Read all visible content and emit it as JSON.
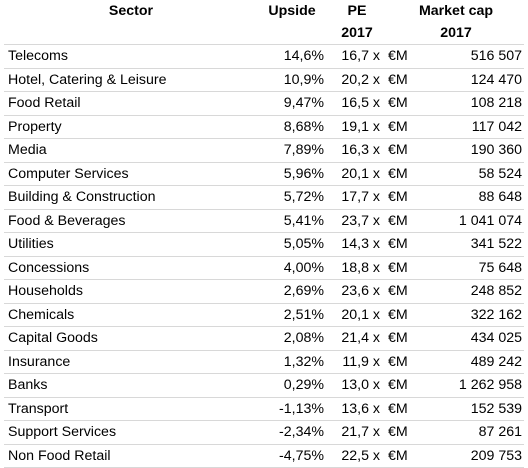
{
  "headers": {
    "sector": "Sector",
    "upside": "Upside",
    "pe_line1": "PE",
    "pe_line2": "2017",
    "mcap_line1": "Market cap",
    "mcap_line2": "2017"
  },
  "rows": [
    {
      "sector": "Telecoms",
      "upside": "14,6%",
      "pe": "16,7 x",
      "cur": "€M",
      "mcap": "516 507"
    },
    {
      "sector": "Hotel, Catering & Leisure",
      "upside": "10,9%",
      "pe": "20,2 x",
      "cur": "€M",
      "mcap": "124 470"
    },
    {
      "sector": "Food Retail",
      "upside": "9,47%",
      "pe": "16,5 x",
      "cur": "€M",
      "mcap": "108 218"
    },
    {
      "sector": "Property",
      "upside": "8,68%",
      "pe": "19,1 x",
      "cur": "€M",
      "mcap": "117 042"
    },
    {
      "sector": "Media",
      "upside": "7,89%",
      "pe": "16,3 x",
      "cur": "€M",
      "mcap": "190 360"
    },
    {
      "sector": "Computer Services",
      "upside": "5,96%",
      "pe": "20,1 x",
      "cur": "€M",
      "mcap": "58 524"
    },
    {
      "sector": "Building & Construction",
      "upside": "5,72%",
      "pe": "17,7 x",
      "cur": "€M",
      "mcap": "88 648"
    },
    {
      "sector": "Food & Beverages",
      "upside": "5,41%",
      "pe": "23,7 x",
      "cur": "€M",
      "mcap": "1 041 074"
    },
    {
      "sector": "Utilities",
      "upside": "5,05%",
      "pe": "14,3 x",
      "cur": "€M",
      "mcap": "341 522"
    },
    {
      "sector": "Concessions",
      "upside": "4,00%",
      "pe": "18,8 x",
      "cur": "€M",
      "mcap": "75 648"
    },
    {
      "sector": "Households",
      "upside": "2,69%",
      "pe": "23,6 x",
      "cur": "€M",
      "mcap": "248 852"
    },
    {
      "sector": "Chemicals",
      "upside": "2,51%",
      "pe": "20,1 x",
      "cur": "€M",
      "mcap": "322 162"
    },
    {
      "sector": "Capital Goods",
      "upside": "2,08%",
      "pe": "21,4 x",
      "cur": "€M",
      "mcap": "434 025"
    },
    {
      "sector": "Insurance",
      "upside": "1,32%",
      "pe": "11,9 x",
      "cur": "€M",
      "mcap": "489 242"
    },
    {
      "sector": "Banks",
      "upside": "0,29%",
      "pe": "13,0 x",
      "cur": "€M",
      "mcap": "1 262 958"
    },
    {
      "sector": "Transport",
      "upside": "-1,13%",
      "pe": "13,6 x",
      "cur": "€M",
      "mcap": "152 539"
    },
    {
      "sector": "Support Services",
      "upside": "-2,34%",
      "pe": "21,7 x",
      "cur": "€M",
      "mcap": "87 261"
    },
    {
      "sector": "Non Food Retail",
      "upside": "-4,75%",
      "pe": "22,5 x",
      "cur": "€M",
      "mcap": "209 753"
    }
  ]
}
